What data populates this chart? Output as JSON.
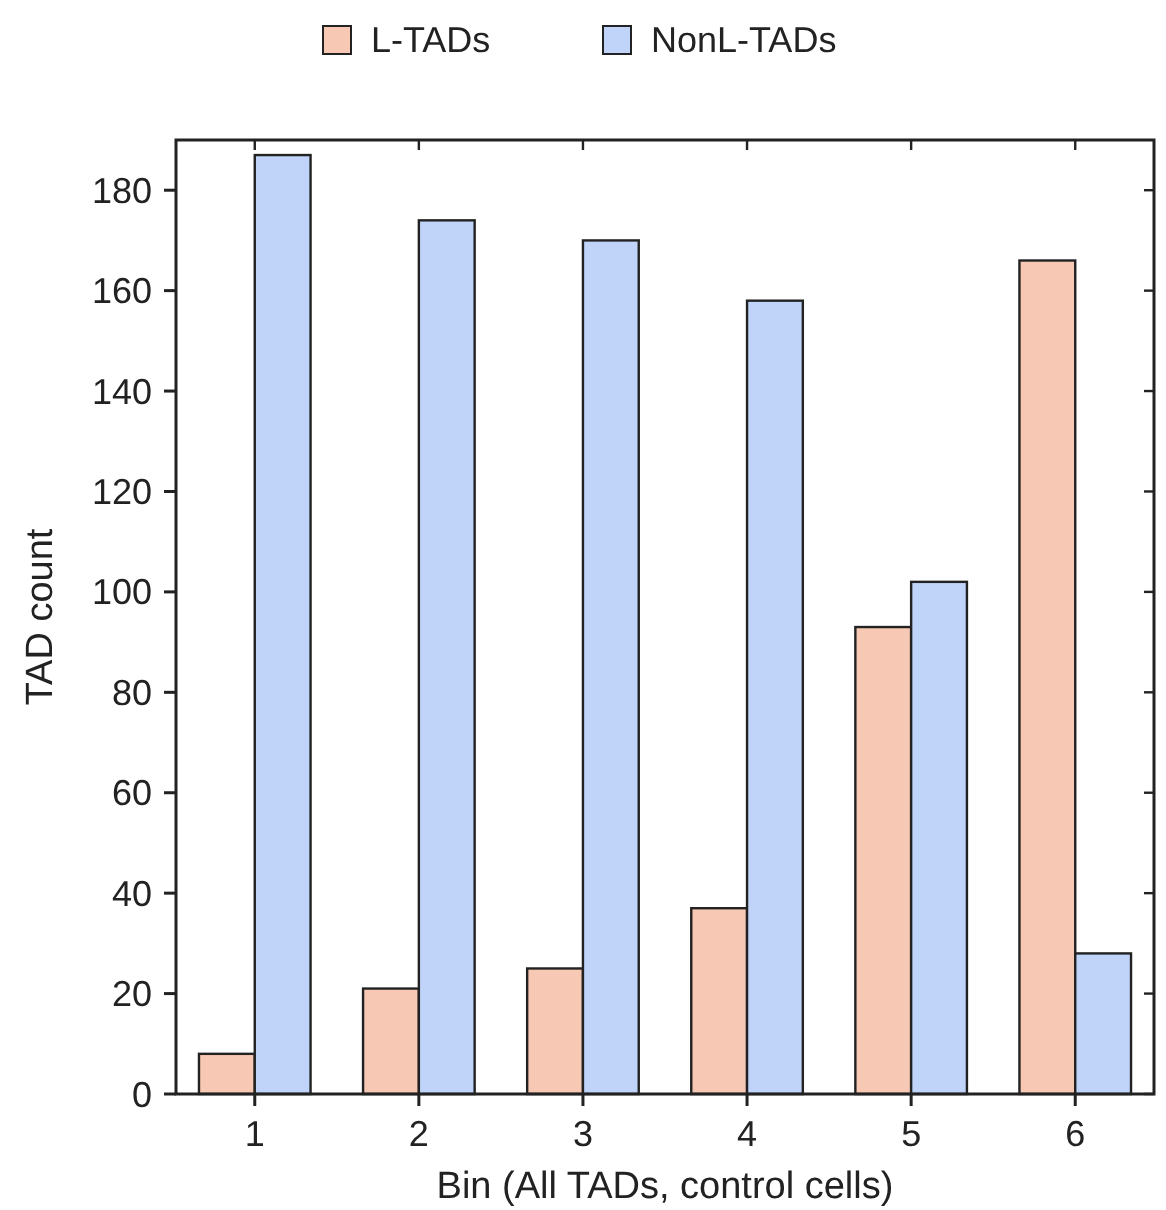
{
  "chart_data": {
    "type": "bar",
    "xlabel": "Bin (All TADs, control cells)",
    "ylabel": "TAD count",
    "categories": [
      "1",
      "2",
      "3",
      "4",
      "5",
      "6"
    ],
    "series": [
      {
        "name": "L-TADs",
        "color": "#f7c8b3",
        "values": [
          8,
          21,
          25,
          37,
          93,
          166
        ]
      },
      {
        "name": "NonL-TADs",
        "color": "#c0d4fa",
        "values": [
          187,
          174,
          170,
          158,
          102,
          28
        ]
      }
    ],
    "ylim": [
      0,
      190
    ],
    "yticks": [
      0,
      20,
      40,
      60,
      80,
      100,
      120,
      140,
      160,
      180
    ],
    "legend": "top",
    "grid": false
  }
}
